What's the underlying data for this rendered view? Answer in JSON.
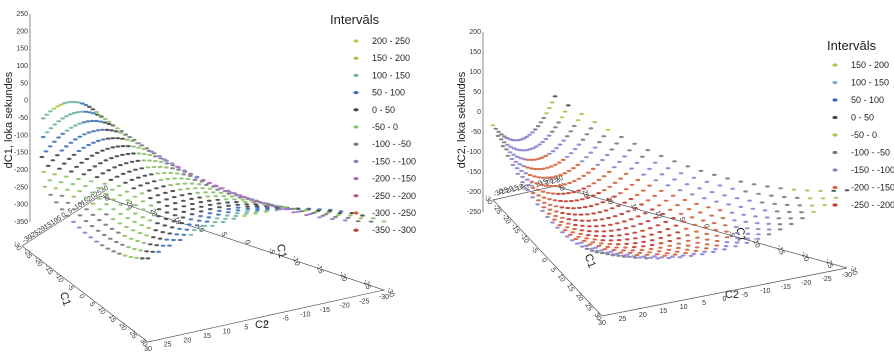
{
  "chart_data": [
    {
      "type": "scatter",
      "surface": "saddle",
      "title": "",
      "zlabel": "dC1, loka sekundes",
      "xlabel": "C2",
      "ylabel": "C1",
      "z_ticks": [
        "250",
        "200",
        "150",
        "100",
        "50",
        "0",
        "-50",
        "-100",
        "-150",
        "-200",
        "-250",
        "-300",
        "-350"
      ],
      "x_ticks": [
        "30",
        "25",
        "20",
        "15",
        "10",
        "5",
        "0",
        "-5",
        "-10",
        "-15",
        "-20",
        "-25",
        "-30"
      ],
      "y_ticks": [
        "-30",
        "-25",
        "-20",
        "-15",
        "-10",
        "-5",
        "0",
        "5",
        "10",
        "15",
        "20",
        "25",
        "30"
      ],
      "back_ticks": [
        "-30",
        "-25",
        "-20",
        "-15",
        "-10",
        "-5",
        "0",
        "5",
        "10",
        "15",
        "20",
        "25",
        "30"
      ],
      "side_ticks": [
        "30",
        "25",
        "20",
        "15",
        "10",
        "5",
        "0",
        "-5",
        "-10",
        "-15",
        "-20",
        "-25",
        "-30"
      ],
      "zlim": [
        -350,
        250
      ],
      "xlim": [
        -30,
        30
      ],
      "ylim": [
        -30,
        30
      ],
      "legend": {
        "title": "Intervāls",
        "placement": "right",
        "items": [
          {
            "label": "200 - 250",
            "color": "#c8c84a"
          },
          {
            "label": "150 - 200",
            "color": "#a6c84e"
          },
          {
            "label": "100 - 150",
            "color": "#6fb4a6"
          },
          {
            "label": "50 - 100",
            "color": "#3e6fb8"
          },
          {
            "label": "0 - 50",
            "color": "#444444"
          },
          {
            "label": "-50 - 0",
            "color": "#8bc26a"
          },
          {
            "label": "-100 - -50",
            "color": "#7a7a7a"
          },
          {
            "label": "-150 - -100",
            "color": "#8c7fd0"
          },
          {
            "label": "-200 - -150",
            "color": "#b36ab3"
          },
          {
            "label": "-250 - -200",
            "color": "#c0567a"
          },
          {
            "label": "-300 - -250",
            "color": "#d4603c"
          },
          {
            "label": "-350 - -300",
            "color": "#c03a2e"
          }
        ]
      }
    },
    {
      "type": "scatter",
      "surface": "bowl",
      "title": "",
      "zlabel": "dC2, loka sekundes",
      "xlabel": "C2",
      "ylabel": "C1",
      "z_ticks": [
        "200",
        "150",
        "100",
        "50",
        "0",
        "-50",
        "-100",
        "-150",
        "-200",
        "-250"
      ],
      "x_ticks": [
        "30",
        "25",
        "20",
        "15",
        "10",
        "5",
        "0",
        "-5",
        "-10",
        "-15",
        "-20",
        "-25",
        "-30"
      ],
      "y_ticks": [
        "-30",
        "-25",
        "-20",
        "-15",
        "-10",
        "-5",
        "0",
        "5",
        "10",
        "15",
        "20",
        "25",
        "30"
      ],
      "back_ticks": [
        "-30",
        "-25",
        "-20",
        "-15",
        "-10",
        "-5",
        "0",
        "5",
        "10",
        "15",
        "20",
        "25",
        "30"
      ],
      "side_ticks": [
        "30",
        "25",
        "20",
        "15",
        "10",
        "5",
        "0",
        "-5",
        "-10",
        "-15",
        "-20",
        "-25",
        "-30"
      ],
      "zlim": [
        -250,
        200
      ],
      "xlim": [
        -30,
        30
      ],
      "ylim": [
        -30,
        30
      ],
      "legend": {
        "title": "Intervāls",
        "placement": "right",
        "items": [
          {
            "label": "150 - 200",
            "color": "#b9c24e"
          },
          {
            "label": "100 - 150",
            "color": "#6fb4c8"
          },
          {
            "label": "50 - 100",
            "color": "#3e62b8"
          },
          {
            "label": "0 - 50",
            "color": "#444444"
          },
          {
            "label": "-50 - 0",
            "color": "#a6c84e"
          },
          {
            "label": "-100 - -50",
            "color": "#7a7a7a"
          },
          {
            "label": "-150 - -100",
            "color": "#8c7fd0"
          },
          {
            "label": "-200 - -150",
            "color": "#d4603c"
          },
          {
            "label": "-250 - -200",
            "color": "#c03a2e"
          }
        ]
      }
    }
  ]
}
